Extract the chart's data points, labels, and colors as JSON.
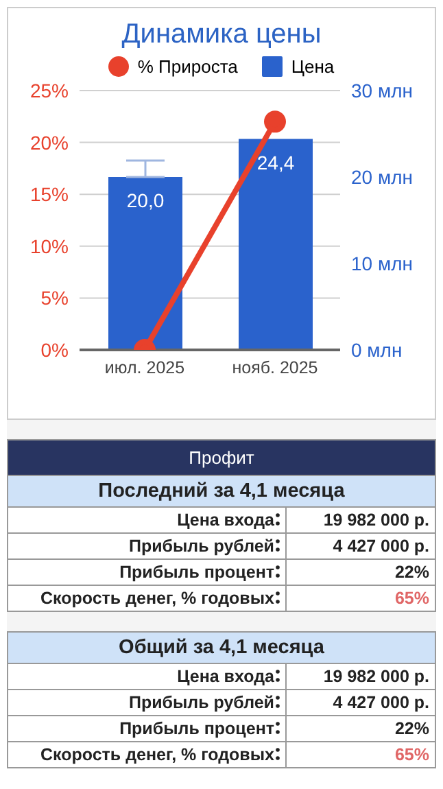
{
  "chart_data": [
    {
      "type": "bar",
      "title": "Динамика цены",
      "categories": [
        "июл. 2025",
        "нояб. 2025"
      ],
      "series": [
        {
          "name": "% Прироста",
          "type": "line",
          "color": "#e8412c",
          "values": [
            0,
            22
          ],
          "axis": "y",
          "marker": "circle"
        },
        {
          "name": "Цена",
          "type": "bar",
          "color": "#2a62cc",
          "values": [
            20.0,
            24.4
          ],
          "axis": "y2",
          "value_labels": [
            "20,0",
            "24,4"
          ],
          "errors": [
            [
              20.0,
              21.9
            ],
            null
          ]
        }
      ],
      "ylim": [
        0,
        25
      ],
      "yticks": [
        {
          "value": 0,
          "label": "0%"
        },
        {
          "value": 5,
          "label": "5%"
        },
        {
          "value": 10,
          "label": "10%"
        },
        {
          "value": 15,
          "label": "15%"
        },
        {
          "value": 20,
          "label": "20%"
        },
        {
          "value": 25,
          "label": "25%"
        }
      ],
      "y2lim": [
        0,
        30
      ],
      "y2ticks": [
        {
          "value": 0,
          "label": "0 млн"
        },
        {
          "value": 10,
          "label": "10 млн"
        },
        {
          "value": 20,
          "label": "20 млн"
        },
        {
          "value": 30,
          "label": "30 млн"
        }
      ],
      "grid": "y",
      "legend": "top"
    },
    {
      "type": "other",
      "title": "Профит",
      "subtitle": "Последний за 4,1 месяца",
      "categories": [
        "Цена входа",
        "Прибыль рублей",
        "Прибыль процент",
        "Скорость денег, % годовых"
      ],
      "value_labels": [
        "19 982 000 р.",
        "4 427 000 р.",
        "22%",
        "65%"
      ]
    },
    {
      "type": "other",
      "subtitle": "Общий за 4,1 месяца",
      "categories": [
        "Цена входа",
        "Прибыль рублей",
        "Прибыль процент",
        "Скорость денег, % годовых"
      ],
      "value_labels": [
        "19 982 000 р.",
        "4 427 000 р.",
        "22%",
        "65%"
      ]
    }
  ]
}
